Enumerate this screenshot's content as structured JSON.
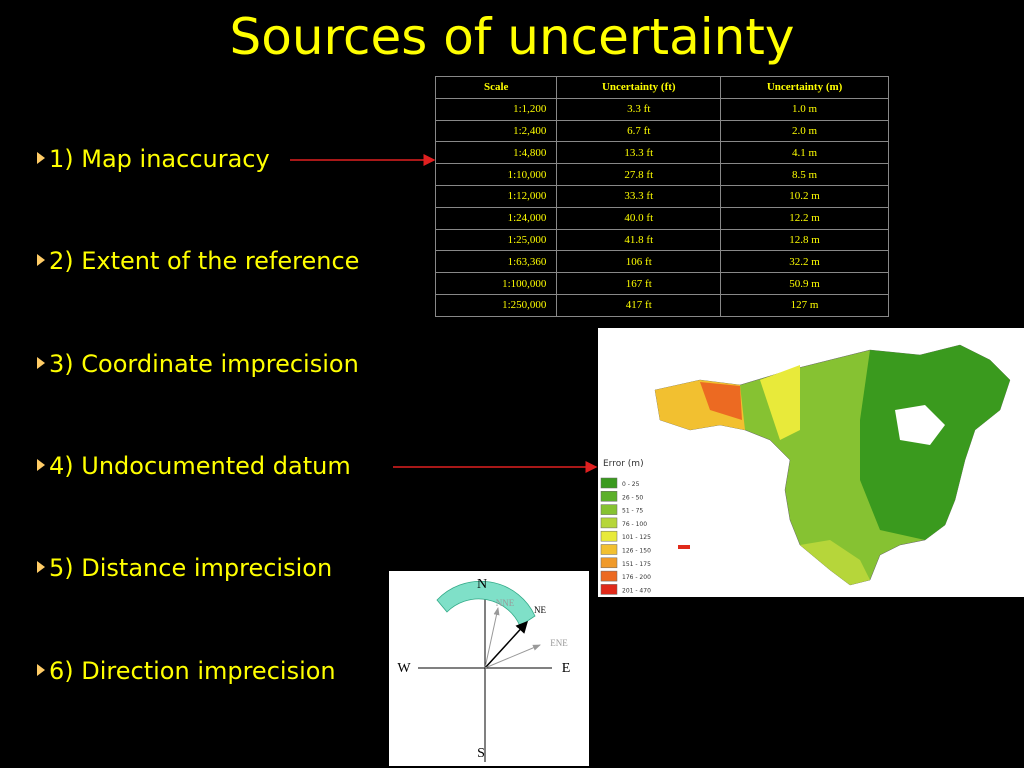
{
  "title": "Sources of uncertainty",
  "bullets": [
    "1) Map inaccuracy",
    "2) Extent of the reference",
    "3) Coordinate imprecision",
    "4) Undocumented datum",
    "5) Distance imprecision",
    "6) Direction imprecision"
  ],
  "table": {
    "header": [
      "Scale",
      "Uncertainty (ft)",
      "Uncertainty (m)"
    ],
    "rows": [
      [
        "1:1,200",
        "3.3 ft",
        "1.0 m"
      ],
      [
        "1:2,400",
        "6.7 ft",
        "2.0 m"
      ],
      [
        "1:4,800",
        "13.3 ft",
        "4.1 m"
      ],
      [
        "1:10,000",
        "27.8 ft",
        "8.5 m"
      ],
      [
        "1:12,000",
        "33.3 ft",
        "10.2 m"
      ],
      [
        "1:24,000",
        "40.0 ft",
        "12.2 m"
      ],
      [
        "1:25,000",
        "41.8 ft",
        "12.8 m"
      ],
      [
        "1:63,360",
        "106 ft",
        "32.2 m"
      ],
      [
        "1:100,000",
        "167 ft",
        "50.9 m"
      ],
      [
        "1:250,000",
        "417 ft",
        "127 m"
      ]
    ]
  },
  "map": {
    "legend_title": "Error (m)",
    "legend": [
      {
        "label": "0 - 25",
        "color": "#3a9a1e"
      },
      {
        "label": "26 - 50",
        "color": "#5cb02a"
      },
      {
        "label": "51 - 75",
        "color": "#86c232"
      },
      {
        "label": "76 - 100",
        "color": "#b6d63a"
      },
      {
        "label": "101 - 125",
        "color": "#e8ea3a"
      },
      {
        "label": "126 - 150",
        "color": "#f2c030"
      },
      {
        "label": "151 - 175",
        "color": "#f09a2a"
      },
      {
        "label": "176 - 200",
        "color": "#ec6a22"
      },
      {
        "label": "201 - 470",
        "color": "#e02a1a"
      }
    ]
  },
  "compass": {
    "n": "N",
    "s": "S",
    "e": "E",
    "w": "W",
    "nne": "NNE",
    "ne": "NE",
    "ene": "ENE"
  }
}
